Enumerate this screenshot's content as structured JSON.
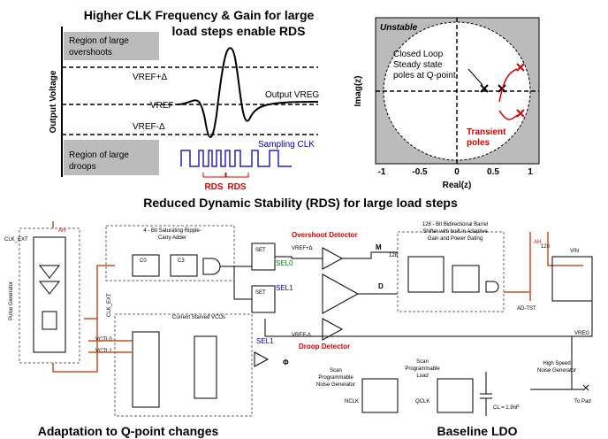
{
  "waveform": {
    "title": [
      "Higher CLK Frequency & Gain for large",
      "load steps enable RDS"
    ],
    "y_label": "Output Voltage",
    "region_overshoot": [
      "Region of large",
      "overshoots"
    ],
    "region_droop": [
      "Region of large",
      "droops"
    ],
    "level_high": "VREF+Δ",
    "level_ref": "VREF",
    "level_low": "VREF-Δ",
    "output_label": "Output VREG",
    "clock_label": "Sampling CLK",
    "rds_labels": [
      "RDS",
      "RDS"
    ]
  },
  "zplane": {
    "unstable": "Unstable",
    "x_label": "Real(z)",
    "y_label": "Imag(z)",
    "x_ticks": [
      "-1",
      "-0.5",
      "0",
      "0.5",
      "1"
    ],
    "steady_note": [
      "Closed Loop",
      "Steady state",
      "poles at Q-point"
    ],
    "transient_note": [
      "Transient",
      "poles"
    ]
  },
  "caption_top": "Reduced Dynamic Stability (RDS) for large load steps",
  "circuit": {
    "clk_ext": "CLK_EXT",
    "pulse_generator": "Pulse Generator",
    "ah_left": "AH",
    "adder": [
      "4 - Bit Saturating Ripple-",
      "Carry Adder"
    ],
    "c0": "C0",
    "c3": "C3",
    "set": [
      "SET",
      "SET"
    ],
    "sel0": "SEL0",
    "sel1": "SEL1",
    "overshoot": "Overshoot Detector",
    "vref_hi": "VREF+Δ",
    "droop": "Droop Detector",
    "vref_lo": "VREF-Δ",
    "m": "M",
    "d": "D",
    "phi": "Φ",
    "shifter": [
      "128 - Bit Bidirectional Barrel",
      "Shifter with built in Adaptive",
      "Gain and Power Gating"
    ],
    "bus": [
      "128",
      "128"
    ],
    "ah_right": "AH",
    "vin": "VIN",
    "ad_tst": "AD-TST",
    "vreg": "VREG",
    "vcos": "Current Starved VCOs",
    "clk_ext2": "CLK_EXT",
    "vctl0": "VCTL0",
    "vctl1": "VCTL1",
    "sel1b": "SEL1",
    "noise_gen": [
      "Scan",
      "Programmable",
      "Noise Generator"
    ],
    "load": [
      "Scan",
      "Programmable",
      "Load"
    ],
    "nclk": "NCLK",
    "qclk": "QCLK",
    "cl": "CL = 1.9nF",
    "hs_noise": [
      "High Speed",
      "Noise Generator"
    ],
    "to_pad": "To Pad"
  },
  "caption_left": "Adaptation to Q-point changes",
  "caption_right": "Baseline LDO"
}
